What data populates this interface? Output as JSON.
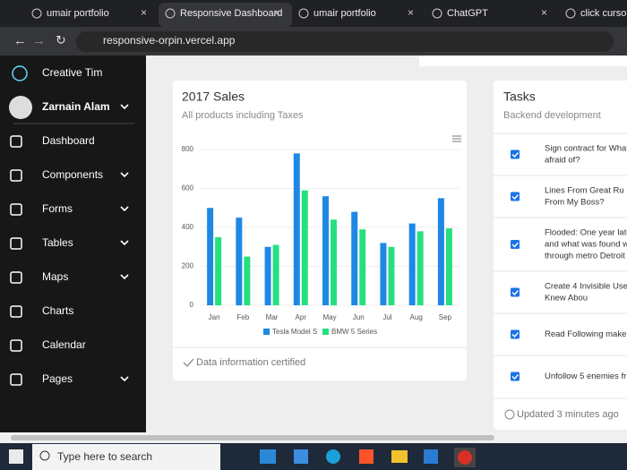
{
  "browser": {
    "tabs": [
      "umair portfolio",
      "Responsive Dashboard",
      "umair portfolio",
      "ChatGPT",
      "click cursor -"
    ],
    "url": "responsive-orpin.vercel.app"
  },
  "sidebar": {
    "brand": "Creative Tim",
    "user": "Zarnain Alam",
    "menu": [
      "Dashboard",
      "Components",
      "Forms",
      "Tables",
      "Maps",
      "Charts",
      "Calendar",
      "Pages"
    ]
  },
  "sales_card": {
    "footer": "Data information certified"
  },
  "chart_data": {
    "type": "bar",
    "title": "2017 Sales",
    "subtitle": "All products including Taxes",
    "categories": [
      "Jan",
      "Feb",
      "Mar",
      "Apr",
      "May",
      "Jun",
      "Jul",
      "Aug",
      "Sep"
    ],
    "series": [
      {
        "name": "Tesla Model S",
        "color": "#1e88e5",
        "values": [
          500,
          450,
          300,
          780,
          560,
          480,
          320,
          420,
          550
        ]
      },
      {
        "name": "BMW 5 Series",
        "color": "#26e07f",
        "values": [
          350,
          250,
          310,
          590,
          440,
          390,
          300,
          380,
          395
        ]
      }
    ],
    "ylim": [
      0,
      800
    ],
    "yticks": [
      0,
      200,
      400,
      600,
      800
    ],
    "grid": true,
    "legend": "bottom"
  },
  "tasks_card": {
    "title": "Tasks",
    "subtitle": "Backend development",
    "tasks": [
      [
        "Sign contract for What",
        "afraid of?"
      ],
      [
        "Lines From Great Ru",
        "From My Boss?"
      ],
      [
        "Flooded: One year late",
        "and what was found w",
        "through metro Detroit"
      ],
      [
        "Create 4 Invisible Use",
        "Knew Abou"
      ],
      [
        "Read Following make"
      ],
      [
        "Unfollow 5 enemies fr"
      ]
    ],
    "footer": "Updated 3 minutes ago"
  },
  "taskbar": {
    "search": "Type here to search"
  }
}
